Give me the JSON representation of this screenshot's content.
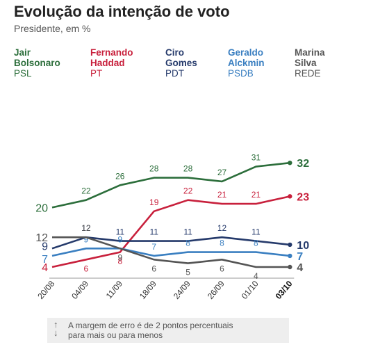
{
  "header": {
    "title": "Evolução da intenção de voto",
    "subtitle": "Presidente, em %"
  },
  "legend": [
    {
      "first": "Jair",
      "last": "Bolsonaro",
      "party": "PSL",
      "color": "#2c6e3b"
    },
    {
      "first": "Fernando",
      "last": "Haddad",
      "party": "PT",
      "color": "#c8203c"
    },
    {
      "first": "Ciro",
      "last": "Gomes",
      "party": "PDT",
      "color": "#253a6b"
    },
    {
      "first": "Geraldo",
      "last": "Alckmin",
      "party": "PSDB",
      "color": "#3a7fc1"
    },
    {
      "first": "Marina",
      "last": "Silva",
      "party": "REDE",
      "color": "#555555"
    }
  ],
  "note": {
    "line1": "A margem de erro é de 2 pontos percentuais",
    "line2": "para mais ou para menos",
    "icon": "double-arrow-icon"
  },
  "chart_data": {
    "type": "line",
    "title": "Evolução da intenção de voto",
    "subtitle": "Presidente, em %",
    "categories": [
      "20/08",
      "04/09",
      "11/09",
      "18/09",
      "24/09",
      "26/09",
      "01/10",
      "03/10"
    ],
    "ylim": [
      0,
      35
    ],
    "grid": false,
    "legend_position": "top",
    "series": [
      {
        "name": "Jair Bolsonaro",
        "party": "PSL",
        "color": "#2c6e3b",
        "values": [
          20,
          22,
          26,
          28,
          28,
          27,
          31,
          32
        ],
        "labels": [
          "20",
          "22",
          "26",
          "28",
          "28",
          "27",
          "31",
          "32"
        ]
      },
      {
        "name": "Fernando Haddad",
        "party": "PT",
        "color": "#c8203c",
        "values": [
          4,
          6,
          8,
          19,
          22,
          21,
          21,
          23
        ],
        "labels": [
          "4",
          "6",
          "8",
          "19",
          "22",
          "21",
          "21",
          "23"
        ]
      },
      {
        "name": "Ciro Gomes",
        "party": "PDT",
        "color": "#253a6b",
        "values": [
          9,
          12,
          11,
          11,
          11,
          12,
          11,
          10
        ],
        "labels": [
          "9",
          "12",
          "11",
          "11",
          "11",
          "12",
          "11",
          "10"
        ]
      },
      {
        "name": "Geraldo Alckmin",
        "party": "PSDB",
        "color": "#3a7fc1",
        "values": [
          7,
          9,
          9,
          7,
          8,
          8,
          8,
          7
        ],
        "labels": [
          "7",
          "9",
          "9",
          "7",
          "8",
          "8",
          "8",
          "7"
        ]
      },
      {
        "name": "Marina Silva",
        "party": "REDE",
        "color": "#555555",
        "values": [
          12,
          12,
          9,
          6,
          5,
          6,
          4,
          4
        ],
        "labels": [
          "12",
          "12",
          "9",
          "6",
          "5",
          "6",
          "4",
          "4"
        ]
      }
    ]
  }
}
